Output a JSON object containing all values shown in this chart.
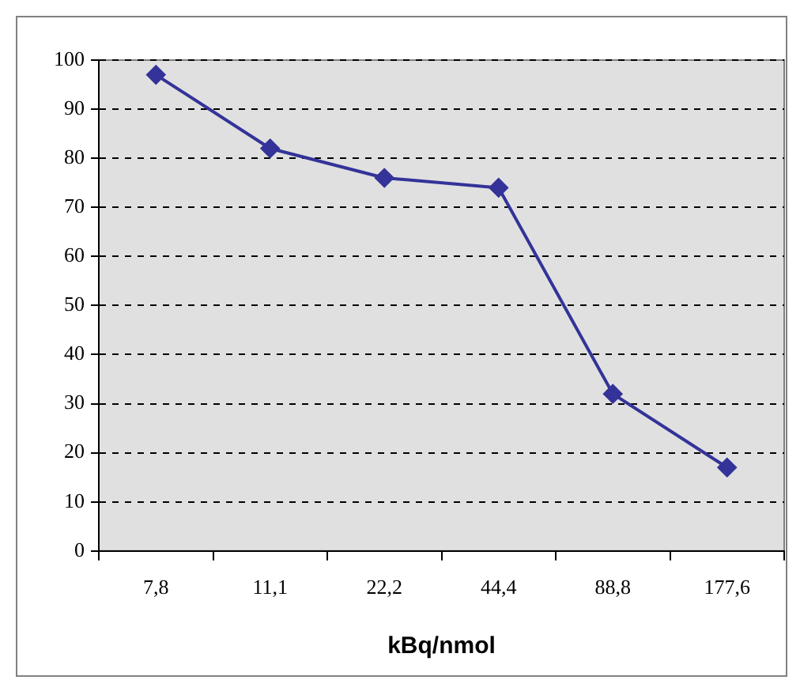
{
  "chart_data": {
    "type": "line",
    "xlabel": "kBq/nmol",
    "categories": [
      "7,8",
      "11,1",
      "22,2",
      "44,4",
      "88,8",
      "177,6"
    ],
    "series": [
      {
        "color": "#333399",
        "values": [
          97,
          82,
          76,
          74,
          32,
          17
        ]
      }
    ],
    "ylim": [
      0,
      100
    ],
    "yticks": [
      0,
      10,
      20,
      30,
      40,
      50,
      60,
      70,
      80,
      90,
      100
    ],
    "grid": "y",
    "legend": false,
    "marker": "diamond",
    "line_style": "solid"
  }
}
